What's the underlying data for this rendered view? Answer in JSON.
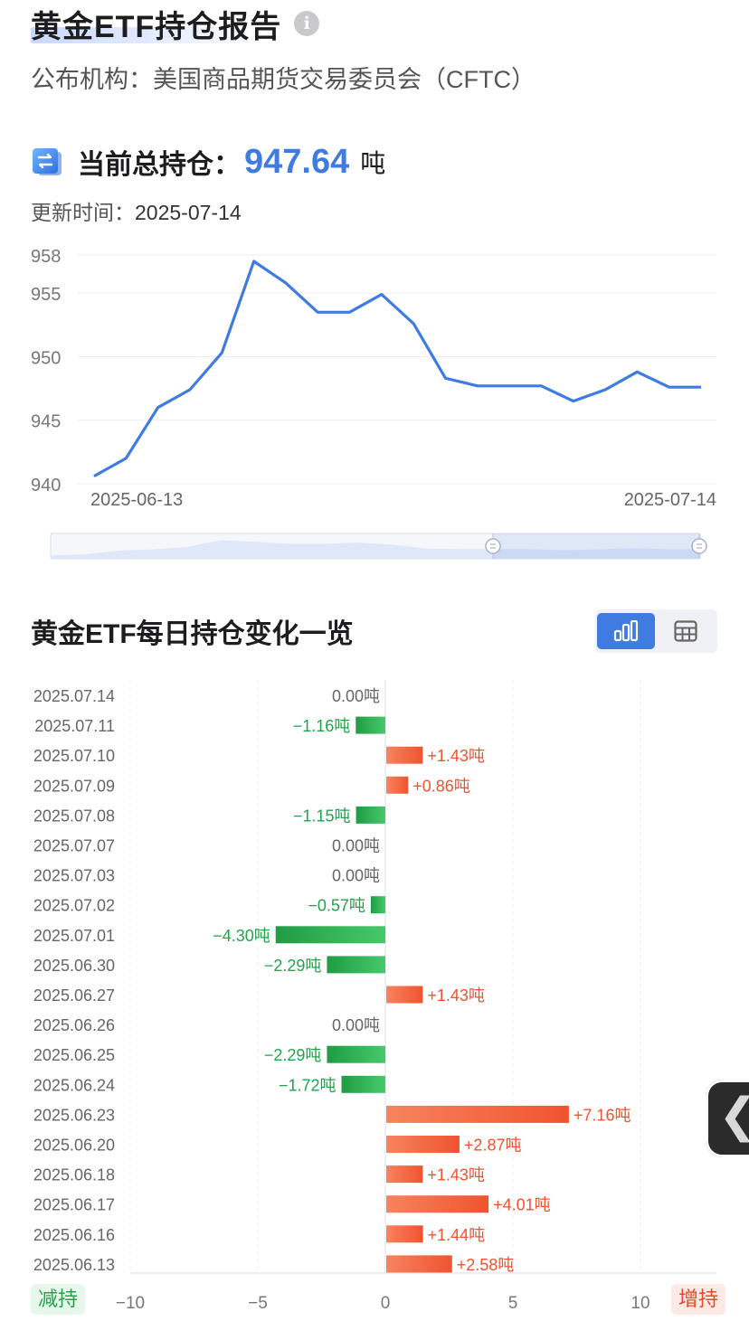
{
  "header": {
    "title": "黄金ETF持仓报告",
    "publisher": "公布机构：美国商品期货交易委员会（CFTC）"
  },
  "holding": {
    "label": "当前总持仓：",
    "value": "947.64",
    "unit": "吨",
    "update_label": "更新时间：",
    "update_date": "2025-07-14"
  },
  "section": {
    "title": "黄金ETF每日持仓变化一览",
    "toggle_chart_icon": "bar-chart-icon",
    "toggle_table_icon": "table-icon"
  },
  "legend_tags": {
    "decrease": "减持",
    "increase": "增持"
  },
  "colors": {
    "accent": "#3f7be0",
    "increase": "#f0532f",
    "decrease": "#22a44a"
  },
  "chart_data": [
    {
      "type": "line",
      "x": [
        "2025-06-13",
        "2025-06-16",
        "2025-06-17",
        "2025-06-18",
        "2025-06-20",
        "2025-06-23",
        "2025-06-24",
        "2025-06-25",
        "2025-06-26",
        "2025-06-27",
        "2025-06-30",
        "2025-07-01",
        "2025-07-02",
        "2025-07-03",
        "2025-07-07",
        "2025-07-08",
        "2025-07-09",
        "2025-07-10",
        "2025-07-11",
        "2025-07-14"
      ],
      "series": [
        {
          "values": [
            940.6,
            942.0,
            946.0,
            947.4,
            950.3,
            957.5,
            955.8,
            953.5,
            953.5,
            954.9,
            952.6,
            948.3,
            947.7,
            947.7,
            947.7,
            946.5,
            947.4,
            948.8,
            947.6,
            947.6
          ]
        }
      ],
      "x_tick_labels": [
        "2025-06-13",
        "2025-07-14"
      ],
      "y_ticks": [
        940,
        945,
        950,
        955,
        958
      ],
      "ylim": [
        940,
        958
      ],
      "grid": true,
      "has_range_slider": true
    },
    {
      "type": "bar",
      "orientation": "horizontal",
      "categories": [
        "2025.07.14",
        "2025.07.11",
        "2025.07.10",
        "2025.07.09",
        "2025.07.08",
        "2025.07.07",
        "2025.07.03",
        "2025.07.02",
        "2025.07.01",
        "2025.06.30",
        "2025.06.27",
        "2025.06.26",
        "2025.06.25",
        "2025.06.24",
        "2025.06.23",
        "2025.06.20",
        "2025.06.18",
        "2025.06.17",
        "2025.06.16",
        "2025.06.13"
      ],
      "values": [
        0.0,
        -1.16,
        1.43,
        0.86,
        -1.15,
        0.0,
        0.0,
        -0.57,
        -4.3,
        -2.29,
        1.43,
        0.0,
        -2.29,
        -1.72,
        7.16,
        2.87,
        1.43,
        4.01,
        1.44,
        2.58
      ],
      "value_labels": [
        "0.00吨",
        "−1.16吨",
        "+1.43吨",
        "+0.86吨",
        "−1.15吨",
        "0.00吨",
        "0.00吨",
        "−0.57吨",
        "−4.30吨",
        "−2.29吨",
        "+1.43吨",
        "0.00吨",
        "−2.29吨",
        "−1.72吨",
        "+7.16吨",
        "+2.87吨",
        "+1.43吨",
        "+4.01吨",
        "+1.44吨",
        "+2.58吨"
      ],
      "x_ticks": [
        -10,
        -5,
        0,
        5,
        10
      ],
      "x_tick_labels": [
        "−10",
        "−5",
        "0",
        "5",
        "10"
      ],
      "xlim": [
        -10,
        10
      ],
      "grid": true
    }
  ]
}
